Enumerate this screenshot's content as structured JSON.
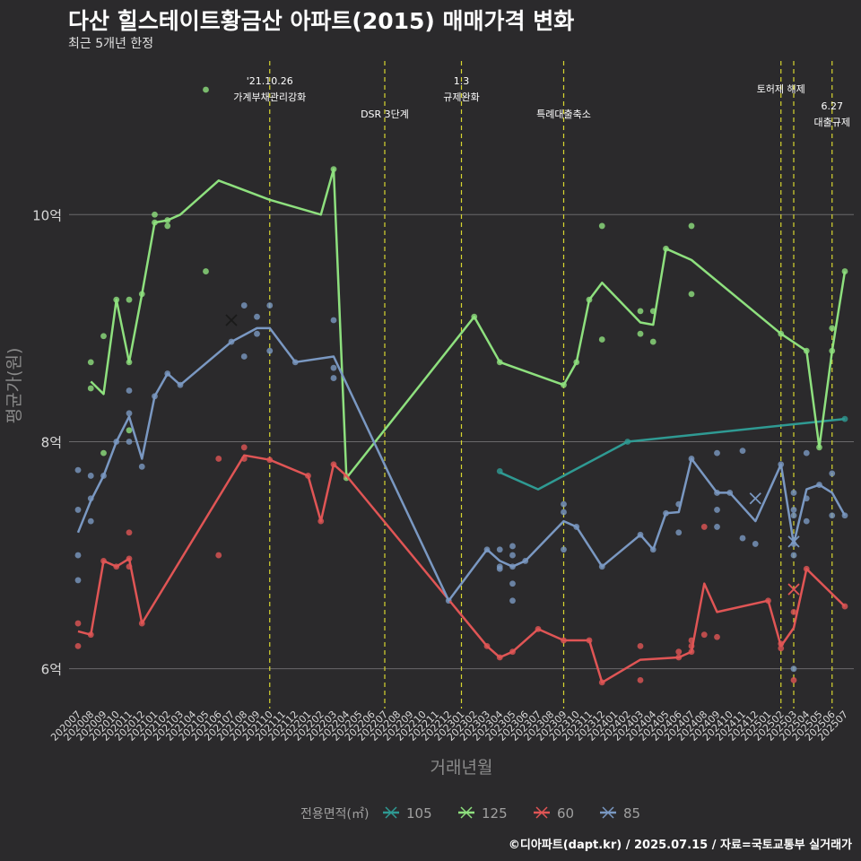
{
  "title": "다산 힐스테이트황금산 아파트(2015) 매매가격 변화",
  "subtitle": "최근 5개년 한정",
  "caption": "©디아파트(dapt.kr) / 2025.07.15 / 자료=국토교통부 실거래가",
  "chart_data": {
    "type": "line",
    "xlabel": "거래년월",
    "ylabel": "평균가(원)",
    "ylim": [
      5.65,
      11.4
    ],
    "y_ticks": [
      {
        "value": 6,
        "label": "6억"
      },
      {
        "value": 8,
        "label": "8억"
      },
      {
        "value": 10,
        "label": "10억"
      }
    ],
    "x_categories": [
      "202007",
      "202008",
      "202009",
      "202010",
      "202011",
      "202012",
      "202101",
      "202102",
      "202103",
      "202104",
      "202105",
      "202106",
      "202107",
      "202108",
      "202109",
      "202110",
      "202111",
      "202112",
      "202201",
      "202202",
      "202203",
      "202204",
      "202205",
      "202206",
      "202207",
      "202208",
      "202209",
      "202210",
      "202211",
      "202212",
      "202301",
      "202302",
      "202303",
      "202304",
      "202305",
      "202306",
      "202307",
      "202308",
      "202309",
      "202310",
      "202311",
      "202312",
      "202401",
      "202402",
      "202403",
      "202404",
      "202405",
      "202406",
      "202407",
      "202408",
      "202409",
      "202410",
      "202411",
      "202412",
      "202501",
      "202502",
      "202503",
      "202504",
      "202505",
      "202506",
      "202507"
    ],
    "legend_title": "전용면적(㎡)",
    "legend_position": "bottom",
    "series": [
      {
        "name": "105",
        "color": "#2f9a93",
        "points": [
          [
            "202304",
            7.73
          ],
          [
            "202307",
            7.58
          ],
          [
            "202402",
            8.0
          ],
          [
            "202507",
            8.2
          ]
        ],
        "dots": [
          [
            "202304",
            7.74
          ],
          [
            "202402",
            8.0
          ],
          [
            "202507",
            8.2
          ]
        ]
      },
      {
        "name": "125",
        "color": "#8ee07e",
        "points": [
          [
            "202008",
            8.53
          ],
          [
            "202009",
            8.42
          ],
          [
            "202010",
            9.25
          ],
          [
            "202011",
            8.7
          ],
          [
            "202012",
            9.3
          ],
          [
            "202101",
            9.93
          ],
          [
            "202102",
            9.95
          ],
          [
            "202103",
            10.0
          ],
          [
            "202106",
            10.3
          ],
          [
            "202110",
            10.13
          ],
          [
            "202202",
            10.0
          ],
          [
            "202203",
            10.4
          ],
          [
            "202204",
            7.68
          ],
          [
            "202302",
            9.1
          ],
          [
            "202304",
            8.7
          ],
          [
            "202309",
            8.5
          ],
          [
            "202310",
            8.7
          ],
          [
            "202311",
            9.25
          ],
          [
            "202312",
            9.4
          ],
          [
            "202403",
            9.05
          ],
          [
            "202404",
            9.03
          ],
          [
            "202405",
            9.7
          ],
          [
            "202407",
            9.6
          ],
          [
            "202502",
            8.95
          ],
          [
            "202504",
            8.8
          ],
          [
            "202505",
            7.95
          ],
          [
            "202506",
            8.8
          ],
          [
            "202507",
            9.5
          ]
        ],
        "dots": [
          [
            "202008",
            8.7
          ],
          [
            "202008",
            8.47
          ],
          [
            "202009",
            8.93
          ],
          [
            "202009",
            7.9
          ],
          [
            "202010",
            9.25
          ],
          [
            "202011",
            9.25
          ],
          [
            "202011",
            8.7
          ],
          [
            "202011",
            8.1
          ],
          [
            "202012",
            9.3
          ],
          [
            "202101",
            10.0
          ],
          [
            "202101",
            9.93
          ],
          [
            "202102",
            9.95
          ],
          [
            "202102",
            9.9
          ],
          [
            "202105",
            11.1
          ],
          [
            "202105",
            9.5
          ],
          [
            "202203",
            10.4
          ],
          [
            "202204",
            7.68
          ],
          [
            "202302",
            9.1
          ],
          [
            "202304",
            8.7
          ],
          [
            "202309",
            8.5
          ],
          [
            "202310",
            8.7
          ],
          [
            "202311",
            9.25
          ],
          [
            "202312",
            9.9
          ],
          [
            "202312",
            8.9
          ],
          [
            "202403",
            9.15
          ],
          [
            "202403",
            8.95
          ],
          [
            "202404",
            9.15
          ],
          [
            "202404",
            8.88
          ],
          [
            "202405",
            9.7
          ],
          [
            "202407",
            9.9
          ],
          [
            "202407",
            9.3
          ],
          [
            "202502",
            8.95
          ],
          [
            "202504",
            8.8
          ],
          [
            "202505",
            7.95
          ],
          [
            "202506",
            9.0
          ],
          [
            "202506",
            8.8
          ],
          [
            "202507",
            9.5
          ]
        ]
      },
      {
        "name": "60",
        "color": "#e05555",
        "points": [
          [
            "202007",
            6.33
          ],
          [
            "202008",
            6.3
          ],
          [
            "202009",
            6.95
          ],
          [
            "202010",
            6.9
          ],
          [
            "202011",
            6.97
          ],
          [
            "202012",
            6.4
          ],
          [
            "202108",
            7.88
          ],
          [
            "202110",
            7.84
          ],
          [
            "202201",
            7.7
          ],
          [
            "202202",
            7.3
          ],
          [
            "202203",
            7.8
          ],
          [
            "202204",
            7.7
          ],
          [
            "202303",
            6.2
          ],
          [
            "202304",
            6.1
          ],
          [
            "202305",
            6.15
          ],
          [
            "202307",
            6.35
          ],
          [
            "202309",
            6.25
          ],
          [
            "202311",
            6.25
          ],
          [
            "202312",
            5.88
          ],
          [
            "202403",
            6.08
          ],
          [
            "202406",
            6.1
          ],
          [
            "202407",
            6.15
          ],
          [
            "202408",
            6.75
          ],
          [
            "202409",
            6.5
          ],
          [
            "202501",
            6.6
          ],
          [
            "202502",
            6.2
          ],
          [
            "202503",
            6.36
          ],
          [
            "202504",
            6.88
          ],
          [
            "202507",
            6.55
          ]
        ],
        "dots": [
          [
            "202007",
            6.4
          ],
          [
            "202007",
            6.2
          ],
          [
            "202008",
            6.3
          ],
          [
            "202009",
            6.95
          ],
          [
            "202010",
            6.9
          ],
          [
            "202011",
            7.2
          ],
          [
            "202011",
            6.97
          ],
          [
            "202011",
            6.9
          ],
          [
            "202012",
            6.4
          ],
          [
            "202106",
            7.85
          ],
          [
            "202106",
            7.0
          ],
          [
            "202108",
            7.95
          ],
          [
            "202108",
            7.85
          ],
          [
            "202110",
            7.84
          ],
          [
            "202201",
            7.7
          ],
          [
            "202202",
            7.3
          ],
          [
            "202203",
            7.8
          ],
          [
            "202204",
            7.7
          ],
          [
            "202303",
            6.2
          ],
          [
            "202304",
            6.1
          ],
          [
            "202305",
            6.15
          ],
          [
            "202307",
            6.35
          ],
          [
            "202309",
            6.25
          ],
          [
            "202311",
            6.25
          ],
          [
            "202312",
            5.88
          ],
          [
            "202403",
            6.2
          ],
          [
            "202403",
            5.9
          ],
          [
            "202406",
            6.15
          ],
          [
            "202406",
            6.1
          ],
          [
            "202407",
            6.25
          ],
          [
            "202407",
            6.2
          ],
          [
            "202407",
            6.15
          ],
          [
            "202408",
            7.25
          ],
          [
            "202408",
            6.3
          ],
          [
            "202409",
            6.28
          ],
          [
            "202501",
            6.6
          ],
          [
            "202502",
            6.22
          ],
          [
            "202502",
            6.18
          ],
          [
            "202503",
            6.5
          ],
          [
            "202503",
            5.9
          ],
          [
            "202504",
            6.88
          ],
          [
            "202507",
            6.55
          ]
        ],
        "crosses": [
          [
            "202503",
            6.7
          ]
        ]
      },
      {
        "name": "85",
        "color": "#7a98c2",
        "points": [
          [
            "202007",
            7.2
          ],
          [
            "202008",
            7.48
          ],
          [
            "202009",
            7.7
          ],
          [
            "202010",
            8.0
          ],
          [
            "202011",
            8.22
          ],
          [
            "202012",
            7.85
          ],
          [
            "202101",
            8.4
          ],
          [
            "202102",
            8.6
          ],
          [
            "202103",
            8.5
          ],
          [
            "202107",
            8.88
          ],
          [
            "202109",
            9.0
          ],
          [
            "202110",
            9.0
          ],
          [
            "202112",
            8.7
          ],
          [
            "202203",
            8.75
          ],
          [
            "202212",
            6.6
          ],
          [
            "202303",
            7.05
          ],
          [
            "202304",
            6.95
          ],
          [
            "202305",
            6.9
          ],
          [
            "202306",
            6.95
          ],
          [
            "202309",
            7.3
          ],
          [
            "202310",
            7.25
          ],
          [
            "202312",
            6.9
          ],
          [
            "202403",
            7.18
          ],
          [
            "202404",
            7.05
          ],
          [
            "202405",
            7.37
          ],
          [
            "202406",
            7.38
          ],
          [
            "202407",
            7.85
          ],
          [
            "202409",
            7.55
          ],
          [
            "202410",
            7.55
          ],
          [
            "202412",
            7.3
          ],
          [
            "202502",
            7.8
          ],
          [
            "202503",
            7.1
          ],
          [
            "202504",
            7.58
          ],
          [
            "202505",
            7.62
          ],
          [
            "202506",
            7.55
          ],
          [
            "202507",
            7.35
          ]
        ],
        "dots": [
          [
            "202007",
            7.75
          ],
          [
            "202007",
            7.4
          ],
          [
            "202007",
            7.0
          ],
          [
            "202007",
            6.78
          ],
          [
            "202008",
            7.7
          ],
          [
            "202008",
            7.5
          ],
          [
            "202008",
            7.3
          ],
          [
            "202009",
            7.7
          ],
          [
            "202010",
            8.0
          ],
          [
            "202011",
            8.45
          ],
          [
            "202011",
            8.25
          ],
          [
            "202011",
            8.0
          ],
          [
            "202012",
            7.78
          ],
          [
            "202101",
            8.4
          ],
          [
            "202102",
            8.6
          ],
          [
            "202103",
            8.5
          ],
          [
            "202107",
            8.88
          ],
          [
            "202108",
            9.2
          ],
          [
            "202108",
            8.75
          ],
          [
            "202109",
            9.1
          ],
          [
            "202109",
            8.95
          ],
          [
            "202110",
            9.2
          ],
          [
            "202110",
            8.8
          ],
          [
            "202112",
            8.7
          ],
          [
            "202203",
            9.07
          ],
          [
            "202203",
            8.65
          ],
          [
            "202203",
            8.56
          ],
          [
            "202212",
            6.6
          ],
          [
            "202303",
            7.05
          ],
          [
            "202304",
            7.05
          ],
          [
            "202304",
            6.9
          ],
          [
            "202304",
            6.88
          ],
          [
            "202305",
            7.08
          ],
          [
            "202305",
            7.0
          ],
          [
            "202305",
            6.9
          ],
          [
            "202305",
            6.75
          ],
          [
            "202305",
            6.6
          ],
          [
            "202306",
            6.95
          ],
          [
            "202309",
            7.45
          ],
          [
            "202309",
            7.38
          ],
          [
            "202309",
            7.05
          ],
          [
            "202310",
            7.25
          ],
          [
            "202312",
            6.9
          ],
          [
            "202403",
            7.18
          ],
          [
            "202404",
            7.05
          ],
          [
            "202405",
            7.37
          ],
          [
            "202406",
            7.45
          ],
          [
            "202406",
            7.2
          ],
          [
            "202407",
            7.85
          ],
          [
            "202409",
            7.9
          ],
          [
            "202409",
            7.55
          ],
          [
            "202409",
            7.4
          ],
          [
            "202409",
            7.25
          ],
          [
            "202410",
            7.55
          ],
          [
            "202411",
            7.92
          ],
          [
            "202411",
            7.15
          ],
          [
            "202412",
            7.1
          ],
          [
            "202502",
            7.8
          ],
          [
            "202503",
            7.55
          ],
          [
            "202503",
            7.4
          ],
          [
            "202503",
            7.35
          ],
          [
            "202503",
            7.1
          ],
          [
            "202503",
            7.0
          ],
          [
            "202503",
            6.0
          ],
          [
            "202504",
            7.9
          ],
          [
            "202504",
            7.5
          ],
          [
            "202504",
            7.3
          ],
          [
            "202505",
            7.62
          ],
          [
            "202506",
            7.72
          ],
          [
            "202506",
            7.35
          ],
          [
            "202507",
            7.35
          ]
        ],
        "crosses": [
          [
            "202107",
            9.07
          ],
          [
            "202412",
            7.5
          ],
          [
            "202503",
            7.12
          ]
        ]
      }
    ],
    "annotations": [
      {
        "x": "202110",
        "label1": "'21.10.26",
        "label2": "가계부채관리강화"
      },
      {
        "x": "202207",
        "label1": "DSR 3단계",
        "label2": ""
      },
      {
        "x": "202301",
        "label1": "1.3",
        "label2": "규제완화"
      },
      {
        "x": "202309",
        "label1": "특례대출축소",
        "label2": ""
      },
      {
        "x": "202502",
        "label1": "토허제 해제",
        "label2": ""
      },
      {
        "x": "202503",
        "label1": "",
        "label2": ""
      },
      {
        "x": "202506",
        "label1": "6.27",
        "label2": "대출규제"
      }
    ]
  }
}
